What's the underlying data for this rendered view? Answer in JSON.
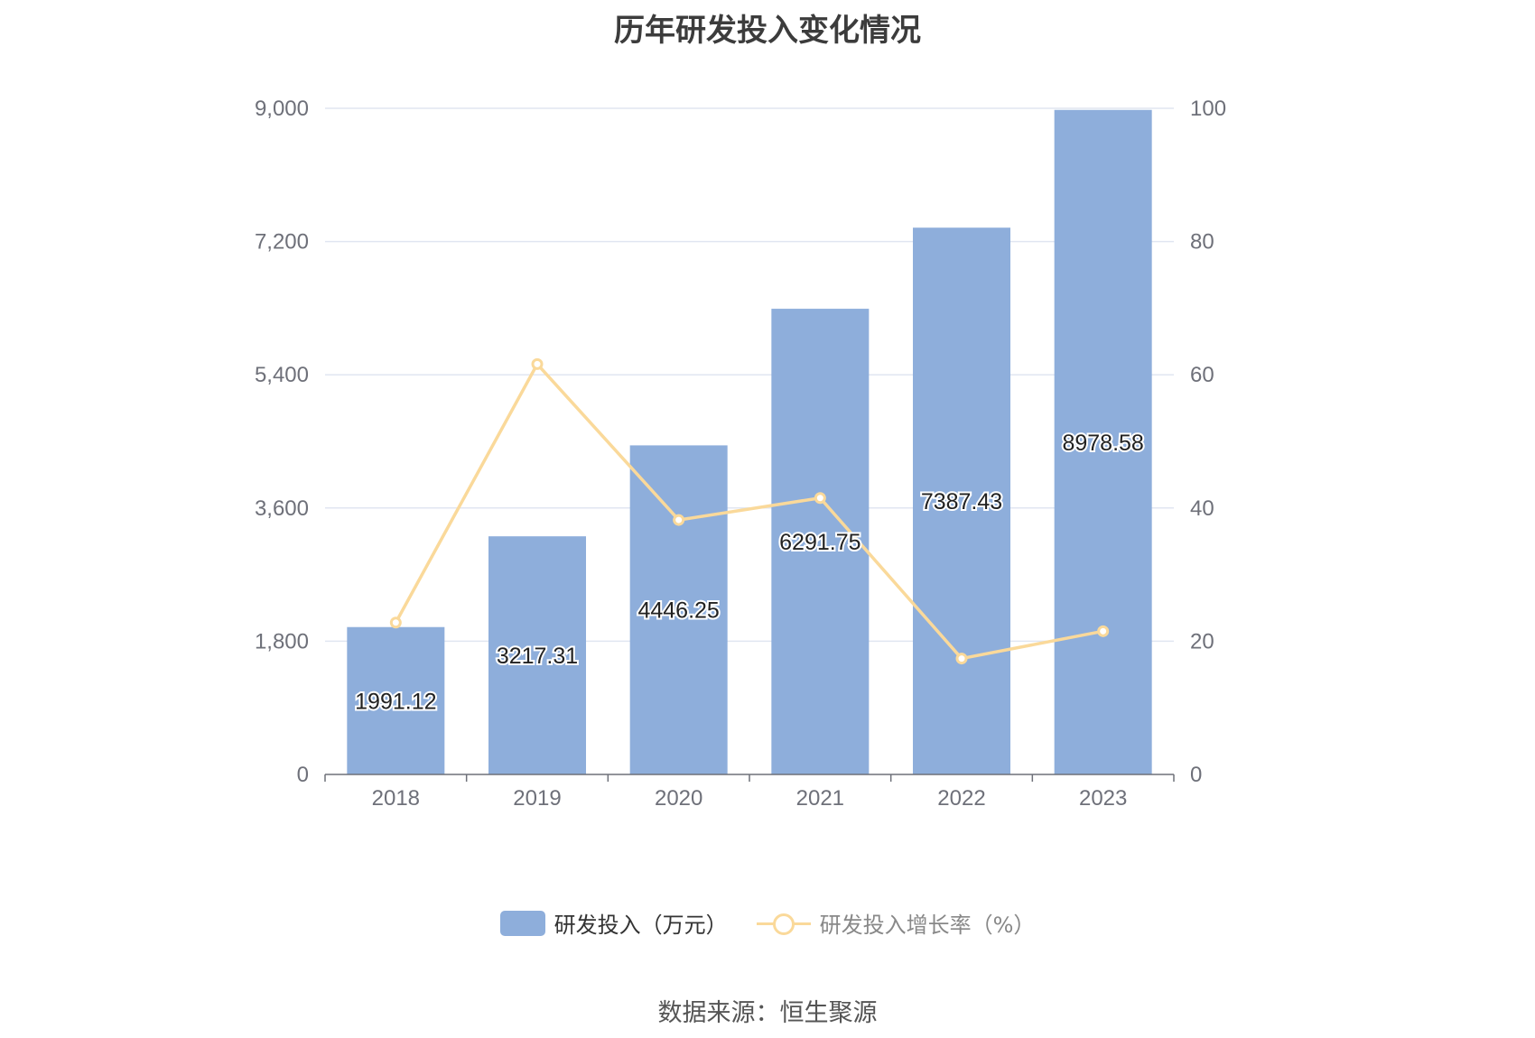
{
  "chart_data": {
    "type": "bar",
    "title": "历年研发投入变化情况",
    "categories": [
      "2018",
      "2019",
      "2020",
      "2021",
      "2022",
      "2023"
    ],
    "series": [
      {
        "name": "研发投入（万元）",
        "type": "bar",
        "axis": "left",
        "color": "#8eaedb",
        "values": [
          1991.12,
          3217.31,
          4446.25,
          6291.75,
          7387.43,
          8978.58
        ],
        "labels": [
          "1991.12",
          "3217.31",
          "4446.25",
          "6291.75",
          "7387.43",
          "8978.58"
        ]
      },
      {
        "name": "研发投入增长率（%）",
        "type": "line",
        "axis": "right",
        "color": "#fad99a",
        "values": [
          22.8,
          61.6,
          38.2,
          41.5,
          17.4,
          21.5
        ]
      }
    ],
    "y_left": {
      "min": 0,
      "max": 9000,
      "ticks": [
        0,
        1800,
        3600,
        5400,
        7200,
        9000
      ],
      "tick_labels": [
        "0",
        "1,800",
        "3,600",
        "5,400",
        "7,200",
        "9,000"
      ]
    },
    "y_right": {
      "min": 0,
      "max": 100,
      "ticks": [
        0,
        20,
        40,
        60,
        80,
        100
      ],
      "tick_labels": [
        "0",
        "20",
        "40",
        "60",
        "80",
        "100"
      ]
    },
    "grid": true,
    "legend_position": "bottom-center"
  },
  "legend": {
    "bar_label": "研发投入（万元）",
    "line_label": "研发投入增长率（%）"
  },
  "source": "数据来源：恒生聚源"
}
